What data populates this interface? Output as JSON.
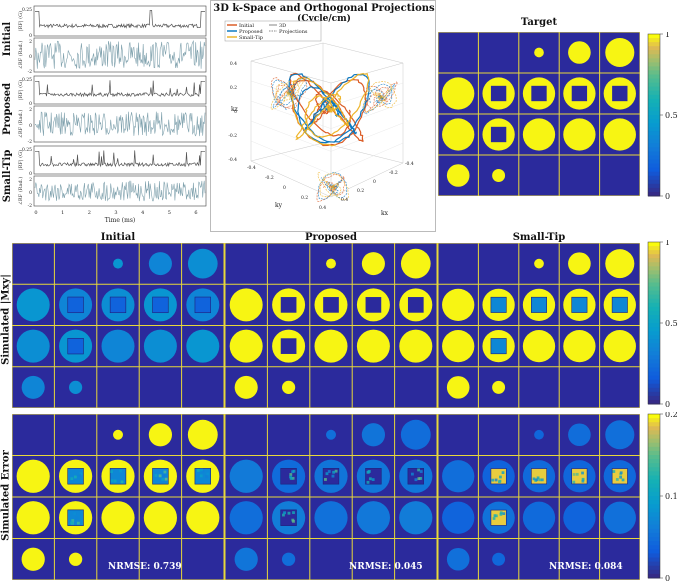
{
  "traces": {
    "row_labels": [
      "Initial",
      "Proposed",
      "Small-Tip"
    ],
    "rf_ylabel": "|RF| (G)",
    "phase_ylabel": "∠RF (Rad.)",
    "rf_ticks": [
      "0.25",
      "0"
    ],
    "phase_ticks": [
      "2",
      "0",
      "-2"
    ],
    "x_ticks": [
      "0",
      "1",
      "2",
      "3",
      "4",
      "5",
      "6"
    ],
    "xlabel": "Time (ms)"
  },
  "kspace": {
    "title_line1": "3D k-Space and Orthogonal Projections",
    "title_line2": "(Cycle/cm)",
    "legend_left": [
      "Initial",
      "Proposed",
      "Small-Tip"
    ],
    "legend_right": [
      "3D",
      "Projections"
    ],
    "axis_kx": "kx",
    "axis_ky": "ky",
    "axis_kz": "kz",
    "ticks_kz": [
      "0.4",
      "0.2",
      "0",
      "-0.2",
      "-0.4"
    ],
    "ticks_ky": [
      "-0.4",
      "-0.2",
      "0",
      "0.2",
      "0.4"
    ],
    "ticks_kx": [
      "0.4",
      "0.2",
      "0",
      "-0.2",
      "-0.4"
    ],
    "colors": {
      "initial": "#d95319",
      "proposed": "#0072bd",
      "smalltip": "#edb120"
    }
  },
  "target": {
    "title": "Target"
  },
  "colorbar_top": {
    "ticks": [
      "1",
      "0.5",
      "0"
    ]
  },
  "colorbar_mid": {
    "ticks": [
      "1",
      "0.5",
      "0"
    ]
  },
  "colorbar_bot": {
    "ticks": [
      "0.2",
      "0.1",
      "0"
    ]
  },
  "sim": {
    "titles": [
      "Initial",
      "Proposed",
      "Small-Tip"
    ],
    "row_label_mxy": "Simulated |Mxy|",
    "row_label_err": "Simulated Error",
    "nrmse": [
      "NRMSE: 0.739",
      "NRMSE: 0.045",
      "NRMSE: 0.084"
    ]
  },
  "shapes": {
    "radii": [
      0,
      0,
      0.12,
      0.28,
      0.36,
      0.4,
      0.4,
      0.4,
      0.4,
      0.4,
      0.4,
      0.4,
      0.4,
      0.4,
      0.4,
      0.28,
      0.16,
      0,
      0,
      0
    ],
    "square": [
      false,
      false,
      false,
      false,
      false,
      false,
      true,
      true,
      true,
      true,
      false,
      true,
      false,
      false,
      false,
      false,
      false,
      false,
      false,
      false
    ]
  }
}
